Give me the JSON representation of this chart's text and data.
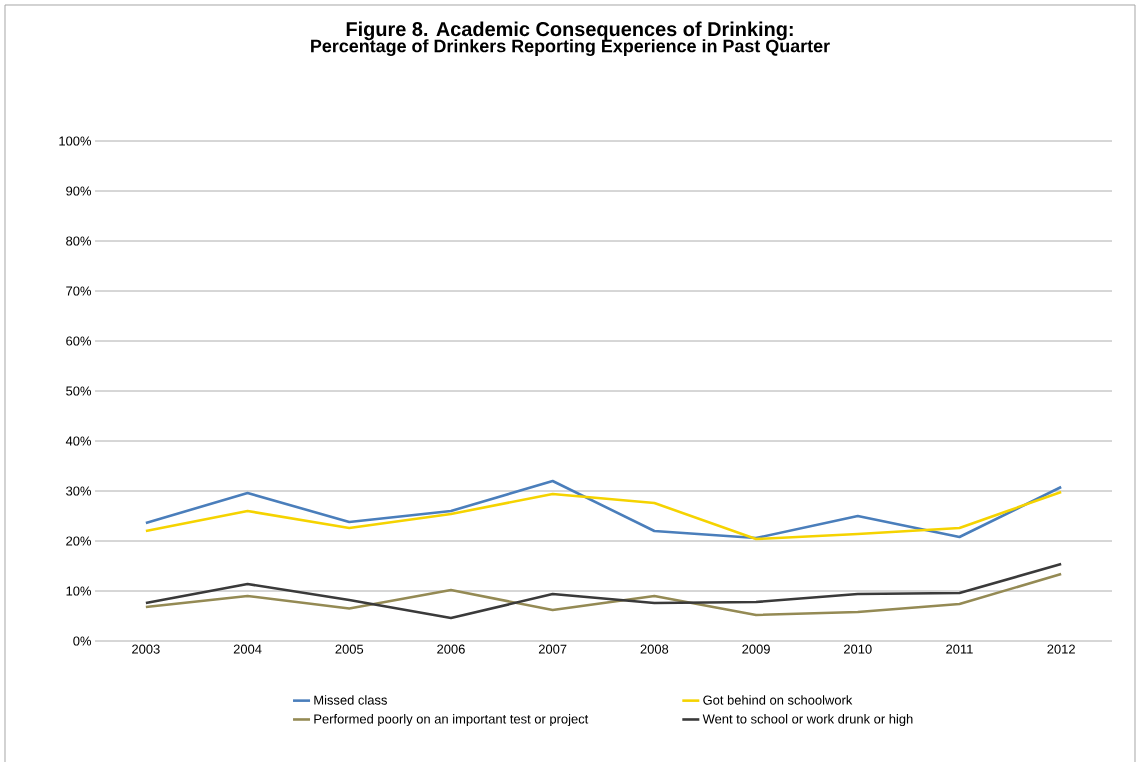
{
  "chart_data": {
    "type": "line",
    "title": "Figure 8.  Academic Consequences of Drinking:",
    "subtitle": "Percentage of Drinkers Reporting Experience in Past Quarter",
    "categories": [
      "2003",
      "2004",
      "2005",
      "2006",
      "2007",
      "2008",
      "2009",
      "2010",
      "2011",
      "2012"
    ],
    "series": [
      {
        "name": "Missed class",
        "color": "#4a7ebb",
        "values": [
          23.6,
          29.6,
          23.8,
          26,
          32,
          22,
          20.6,
          25,
          20.8,
          30.8
        ]
      },
      {
        "name": "Got behind on schoolwork",
        "color": "#f5d300",
        "values": [
          22,
          26,
          22.6,
          25.4,
          29.4,
          27.6,
          20.4,
          21.4,
          22.6,
          29.8
        ]
      },
      {
        "name": "Performed poorly on an important test or project",
        "color": "#948a54",
        "values": [
          6.8,
          9,
          6.5,
          10.2,
          6.2,
          9,
          5.2,
          5.8,
          7.4,
          13.4
        ]
      },
      {
        "name": "Went to school or work drunk or high",
        "color": "#3a3a3a",
        "values": [
          7.6,
          11.4,
          8.2,
          4.6,
          9.4,
          7.6,
          7.8,
          9.4,
          9.6,
          15.4
        ]
      }
    ],
    "ylim": [
      0,
      100
    ],
    "yticks": [
      {
        "value": 0,
        "label": "0%"
      },
      {
        "value": 10,
        "label": "10%"
      },
      {
        "value": 20,
        "label": "20%"
      },
      {
        "value": 30,
        "label": "30%"
      },
      {
        "value": 40,
        "label": "40%"
      },
      {
        "value": 50,
        "label": "50%"
      },
      {
        "value": 60,
        "label": "60%"
      },
      {
        "value": 70,
        "label": "70%"
      },
      {
        "value": 80,
        "label": "80%"
      },
      {
        "value": 90,
        "label": "90%"
      },
      {
        "value": 100,
        "label": "100%"
      }
    ],
    "grid": "y",
    "legend": "bottom",
    "marker": "none",
    "line_style": "solid"
  }
}
